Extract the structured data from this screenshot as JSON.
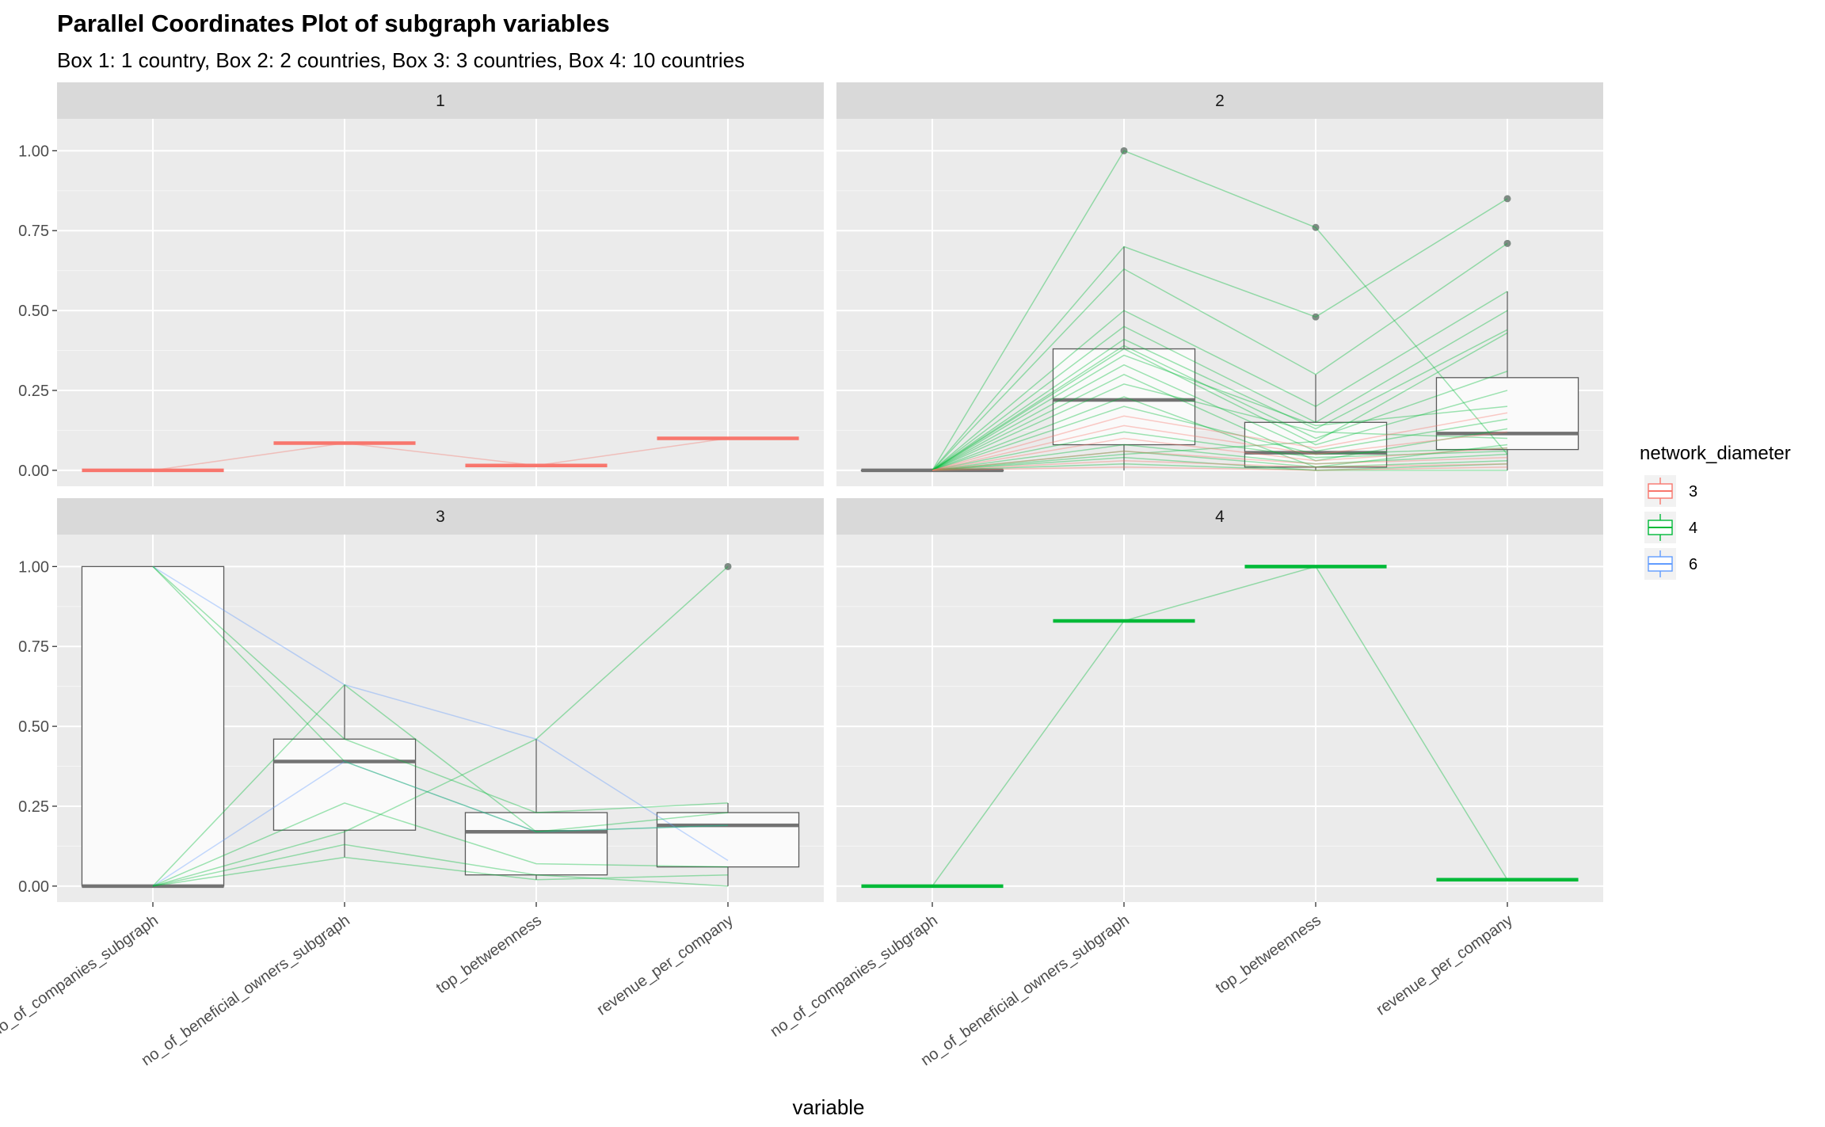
{
  "chart_data": {
    "type": "parallel-coordinates",
    "title": "Parallel Coordinates Plot of subgraph variables",
    "subtitle": "Box 1: 1 country, Box 2: 2 countries, Box 3: 3 countries, Box 4: 10 countries",
    "xlabel": "variable",
    "ylabel": "",
    "ylim": [
      -0.05,
      1.1
    ],
    "y_ticks": [
      0,
      0.25,
      0.5,
      0.75,
      1
    ],
    "y_tick_labels": [
      "0.00",
      "0.25",
      "0.50",
      "0.75",
      "1.00"
    ],
    "variables": [
      "no_of_companies_subgraph",
      "no_of_beneficial_owners_subgraph",
      "top_betweenness",
      "revenue_per_company"
    ],
    "grid": true,
    "legend": {
      "title": "network_diameter",
      "position": "right",
      "entries": [
        {
          "label": "3",
          "color": "#F8766D"
        },
        {
          "label": "4",
          "color": "#00BA38"
        },
        {
          "label": "6",
          "color": "#619CFF"
        }
      ]
    },
    "panels": [
      {
        "label": "1",
        "boxes": [
          {
            "q1": 0,
            "median": 0,
            "q3": 0,
            "lo": 0,
            "hi": 0,
            "out": [],
            "flat_color": "#F8766D"
          },
          {
            "q1": 0.085,
            "median": 0.085,
            "q3": 0.085,
            "lo": 0.085,
            "hi": 0.085,
            "out": [],
            "flat_color": "#F8766D"
          },
          {
            "q1": 0.015,
            "median": 0.015,
            "q3": 0.015,
            "lo": 0.015,
            "hi": 0.015,
            "out": [],
            "flat_color": "#F8766D"
          },
          {
            "q1": 0.1,
            "median": 0.1,
            "q3": 0.1,
            "lo": 0.1,
            "hi": 0.1,
            "out": [],
            "flat_color": "#F8766D"
          }
        ],
        "lines": [
          {
            "group": "3",
            "values": [
              0,
              0.085,
              0.015,
              0.1
            ]
          }
        ]
      },
      {
        "label": "2",
        "boxes": [
          {
            "q1": 0,
            "median": 0,
            "q3": 0,
            "lo": 0,
            "hi": 0,
            "out": []
          },
          {
            "q1": 0.08,
            "median": 0.22,
            "q3": 0.38,
            "lo": 0,
            "hi": 0.7,
            "out": [
              1.0
            ]
          },
          {
            "q1": 0.01,
            "median": 0.055,
            "q3": 0.15,
            "lo": 0,
            "hi": 0.3,
            "out": [
              0.48,
              0.76
            ]
          },
          {
            "q1": 0.065,
            "median": 0.115,
            "q3": 0.29,
            "lo": 0,
            "hi": 0.56,
            "out": [
              0.71,
              0.85
            ]
          }
        ],
        "lines": [
          {
            "group": "4",
            "values": [
              0,
              1.0,
              0.76,
              0.05
            ]
          },
          {
            "group": "4",
            "values": [
              0,
              0.7,
              0.48,
              0.85
            ]
          },
          {
            "group": "4",
            "values": [
              0,
              0.63,
              0.3,
              0.71
            ]
          },
          {
            "group": "4",
            "values": [
              0,
              0.5,
              0.2,
              0.56
            ]
          },
          {
            "group": "4",
            "values": [
              0,
              0.45,
              0.15,
              0.5
            ]
          },
          {
            "group": "4",
            "values": [
              0,
              0.41,
              0.13,
              0.44
            ]
          },
          {
            "group": "4",
            "values": [
              0,
              0.39,
              0.1,
              0.31
            ]
          },
          {
            "group": "4",
            "values": [
              0,
              0.38,
              0.08,
              0.25
            ]
          },
          {
            "group": "4",
            "values": [
              0,
              0.36,
              0.14,
              0.2
            ]
          },
          {
            "group": "4",
            "values": [
              0,
              0.33,
              0.06,
              0.16
            ]
          },
          {
            "group": "4",
            "values": [
              0,
              0.3,
              0.03,
              0.13
            ]
          },
          {
            "group": "4",
            "values": [
              0,
              0.27,
              0.12,
              0.1
            ]
          },
          {
            "group": "4",
            "values": [
              0,
              0.23,
              0.01,
              0.08
            ]
          },
          {
            "group": "4",
            "values": [
              0,
              0.2,
              0.05,
              0.07
            ]
          },
          {
            "group": "4",
            "values": [
              0,
              0.12,
              0.04,
              0.06
            ]
          },
          {
            "group": "4",
            "values": [
              0,
              0.08,
              0.02,
              0.05
            ]
          },
          {
            "group": "4",
            "values": [
              0,
              0.06,
              0.01,
              0.03
            ]
          },
          {
            "group": "4",
            "values": [
              0,
              0.04,
              0.0,
              0.02
            ]
          },
          {
            "group": "4",
            "values": [
              0,
              0.02,
              0.0,
              0.0
            ]
          },
          {
            "group": "4",
            "values": [
              0,
              0.05,
              0.09,
              0.43
            ]
          },
          {
            "group": "3",
            "values": [
              0,
              0.17,
              0.07,
              0.18
            ]
          },
          {
            "group": "3",
            "values": [
              0,
              0.14,
              0.05,
              0.12
            ]
          },
          {
            "group": "3",
            "values": [
              0,
              0.1,
              0.03,
              0.07
            ]
          },
          {
            "group": "3",
            "values": [
              0,
              0.06,
              0.02,
              0.04
            ]
          },
          {
            "group": "3",
            "values": [
              0,
              0.03,
              0.01,
              0.02
            ]
          },
          {
            "group": "3",
            "values": [
              0,
              0.01,
              0.0,
              0.01
            ]
          }
        ]
      },
      {
        "label": "3",
        "boxes": [
          {
            "q1": 0,
            "median": 0,
            "q3": 1.0,
            "lo": 0,
            "hi": 1.0,
            "out": []
          },
          {
            "q1": 0.175,
            "median": 0.39,
            "q3": 0.46,
            "lo": 0.09,
            "hi": 0.63,
            "out": []
          },
          {
            "q1": 0.035,
            "median": 0.17,
            "q3": 0.23,
            "lo": 0.02,
            "hi": 0.46,
            "out": []
          },
          {
            "q1": 0.06,
            "median": 0.19,
            "q3": 0.23,
            "lo": 0,
            "hi": 0.26,
            "out": [
              1.0
            ]
          }
        ],
        "lines": [
          {
            "group": "6",
            "values": [
              1.0,
              0.63,
              0.46,
              0.08
            ]
          },
          {
            "group": "6",
            "values": [
              0,
              0.39,
              0.17,
              0.19
            ]
          },
          {
            "group": "4",
            "values": [
              1.0,
              0.46,
              0.23,
              0.26
            ]
          },
          {
            "group": "4",
            "values": [
              1.0,
              0.39,
              0.17,
              0.19
            ]
          },
          {
            "group": "4",
            "values": [
              0,
              0.63,
              0.17,
              0.23
            ]
          },
          {
            "group": "4",
            "values": [
              0,
              0.26,
              0.07,
              0.06
            ]
          },
          {
            "group": "4",
            "values": [
              0,
              0.17,
              0.46,
              1.0
            ]
          },
          {
            "group": "4",
            "values": [
              0,
              0.13,
              0.035,
              0.0
            ]
          },
          {
            "group": "4",
            "values": [
              0,
              0.09,
              0.02,
              0.035
            ]
          }
        ]
      },
      {
        "label": "4",
        "boxes": [
          {
            "q1": 0,
            "median": 0,
            "q3": 0,
            "lo": 0,
            "hi": 0,
            "out": [],
            "flat_color": "#00BA38"
          },
          {
            "q1": 0.83,
            "median": 0.83,
            "q3": 0.83,
            "lo": 0.83,
            "hi": 0.83,
            "out": [],
            "flat_color": "#00BA38"
          },
          {
            "q1": 1.0,
            "median": 1.0,
            "q3": 1.0,
            "lo": 1.0,
            "hi": 1.0,
            "out": [],
            "flat_color": "#00BA38"
          },
          {
            "q1": 0.02,
            "median": 0.02,
            "q3": 0.02,
            "lo": 0.02,
            "hi": 0.02,
            "out": [],
            "flat_color": "#00BA38"
          }
        ],
        "lines": [
          {
            "group": "4",
            "values": [
              0,
              0.83,
              1.0,
              0.02
            ]
          }
        ]
      }
    ]
  }
}
